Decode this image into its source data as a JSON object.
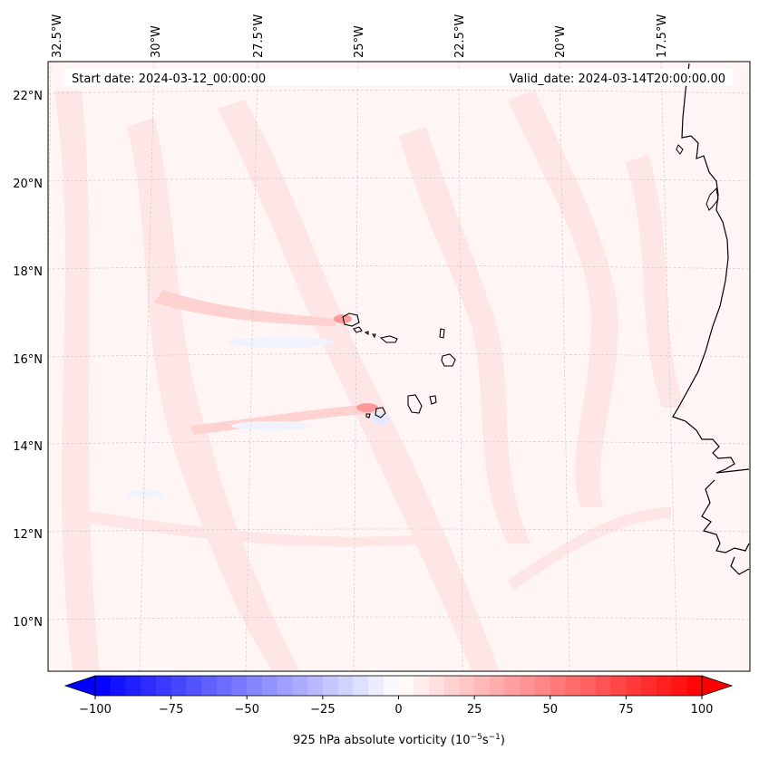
{
  "map": {
    "start_label": "Start date: 2024-03-12_00:00:00",
    "valid_label": "Valid_date: 2024-03-14T20:00:00.00",
    "lon_labels": [
      "32.5°W",
      "30°W",
      "27.5°W",
      "25°W",
      "22.5°W",
      "20°W",
      "17.5°W"
    ],
    "lat_labels": [
      "22°N",
      "20°N",
      "18°N",
      "16°N",
      "14°N",
      "12°N",
      "10°N"
    ],
    "field_colors": {
      "background": "#fff5f5",
      "light_red": "#ffe6e6",
      "mid_red": "#ffd2d2",
      "light_blue": "#f0f3ff",
      "coast": "#000000"
    }
  },
  "colorbar": {
    "ticks": [
      "−100",
      "−75",
      "−50",
      "−25",
      "0",
      "25",
      "50",
      "75",
      "100"
    ],
    "min": -100,
    "max": 100,
    "label": "925 hPa absolute vorticity (10",
    "label_exp1": "−5",
    "label_mid": "s",
    "label_exp2": "−1",
    "label_end": ")",
    "neg_color": "#0000ff",
    "pos_color": "#ff0000"
  }
}
